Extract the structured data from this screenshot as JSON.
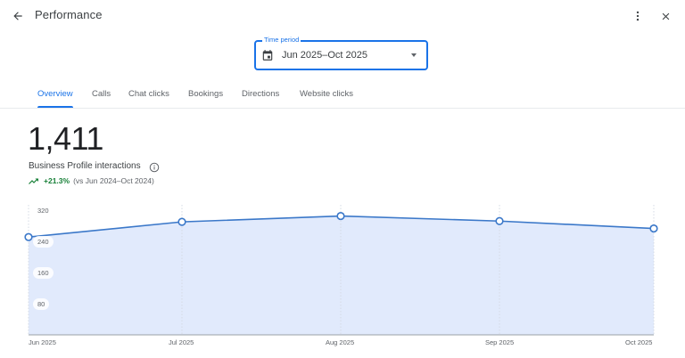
{
  "header": {
    "title": "Performance",
    "back_icon": "arrow-back-icon",
    "more_icon": "more-vert-icon",
    "close_icon": "close-icon"
  },
  "time_period": {
    "label": "Time period",
    "value": "Jun 2025–Oct 2025",
    "icon": "calendar-icon",
    "dropdown_icon": "caret-down-icon"
  },
  "tabs": [
    {
      "label": "Overview",
      "active": true
    },
    {
      "label": "Calls",
      "active": false
    },
    {
      "label": "Chat clicks",
      "active": false
    },
    {
      "label": "Bookings",
      "active": false
    },
    {
      "label": "Directions",
      "active": false
    },
    {
      "label": "Website clicks",
      "active": false
    }
  ],
  "summary": {
    "total": "1,411",
    "label": "Business Profile interactions",
    "info_icon": "info-icon",
    "trend_icon": "trending-up-icon",
    "change": "+21.3%",
    "comparison": "(vs Jun 2024–Oct 2024)"
  },
  "colors": {
    "accent": "#1a73e8",
    "line": "#3b78c9",
    "area_fill": "#e1eafc",
    "positive": "#188038"
  },
  "chart_data": {
    "type": "area",
    "title": "Business Profile interactions",
    "categories": [
      "Jun 2025",
      "Jul 2025",
      "Aug 2025",
      "Sep 2025",
      "Oct 2025"
    ],
    "series": [
      {
        "name": "Business Profile interactions",
        "values": [
          251,
          290,
          305,
          292,
          273
        ]
      }
    ],
    "yticks": [
      80,
      160,
      240,
      320
    ],
    "ylim": [
      0,
      320
    ],
    "xlabel": "",
    "ylabel": "",
    "grid": "vertical dotted",
    "legend": "none"
  }
}
